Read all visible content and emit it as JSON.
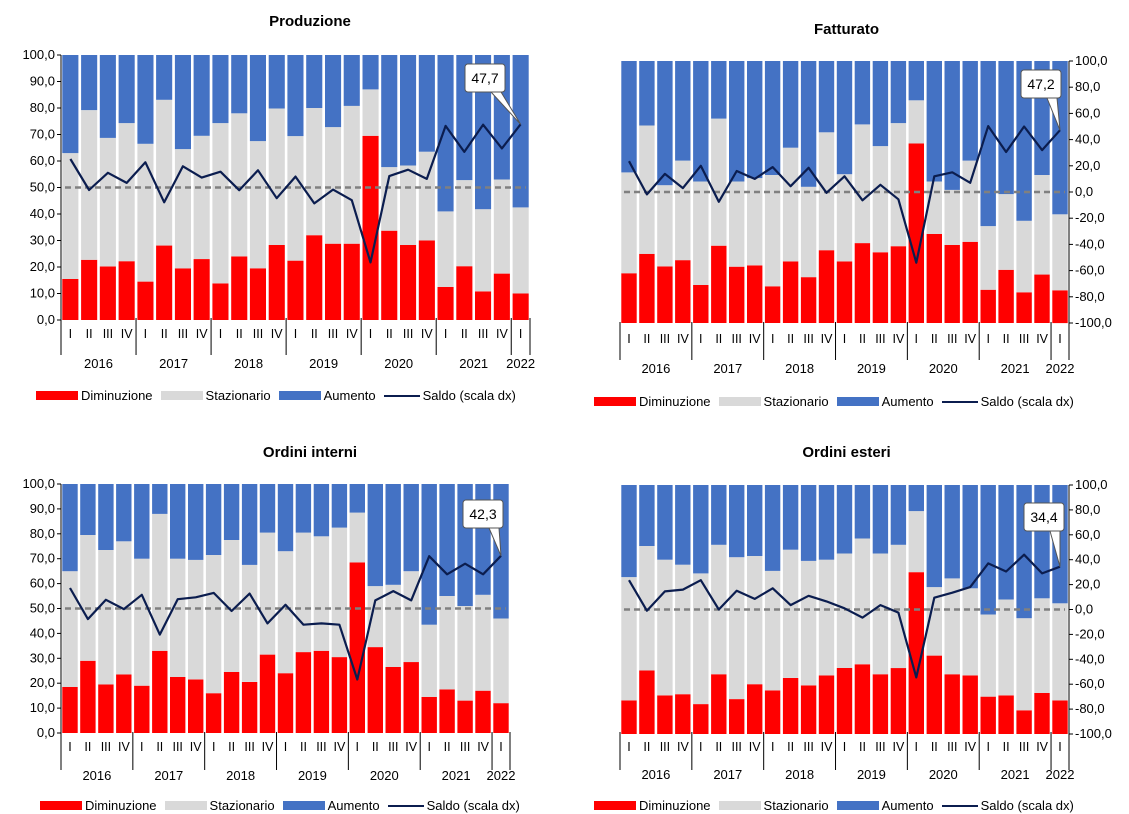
{
  "legend": {
    "decrease": "Diminuzione",
    "steady": "Stazionario",
    "increase": "Aumento",
    "balance": "Saldo (scala dx)"
  },
  "colors": {
    "decrease": "#ff0000",
    "steady": "#d9d9d9",
    "increase": "#4472c4",
    "balance": "#0b1d4f",
    "zero_line": "#808080"
  },
  "chart_data": [
    {
      "type": "bar",
      "stacked": true,
      "title": "Produzione",
      "categories": [
        "I",
        "II",
        "III",
        "IV",
        "I",
        "II",
        "III",
        "IV",
        "I",
        "II",
        "III",
        "IV",
        "I",
        "II",
        "III",
        "IV",
        "I",
        "II",
        "III",
        "IV",
        "I",
        "II",
        "III",
        "IV",
        "I"
      ],
      "year_labels": [
        "2016",
        "2017",
        "2018",
        "2019",
        "2020",
        "2021",
        "2022"
      ],
      "y_left_ticks": [
        "100,0",
        "90,0",
        "80,0",
        "70,0",
        "60,0",
        "50,0",
        "40,0",
        "30,0",
        "20,0",
        "10,0",
        "0,0"
      ],
      "ylim_left": [
        0,
        100
      ],
      "series": [
        {
          "name": "Diminuzione",
          "values": [
            15.5,
            22.7,
            20.2,
            22.2,
            14.5,
            28.1,
            19.5,
            23.0,
            13.8,
            24.0,
            19.5,
            28.3,
            22.4,
            32.0,
            28.8,
            28.8,
            69.5,
            33.7,
            28.3,
            30.0,
            12.5,
            20.3,
            10.8,
            17.5,
            10.0
          ]
        },
        {
          "name": "Stazionario",
          "values": [
            47.5,
            56.5,
            48.5,
            52.1,
            52.0,
            55.0,
            45.0,
            46.5,
            60.5,
            54.0,
            48.0,
            51.5,
            47.0,
            48.0,
            44.0,
            52.0,
            17.5,
            24.0,
            30.0,
            33.5,
            28.5,
            32.5,
            31.0,
            35.5,
            32.5
          ]
        },
        {
          "name": "Aumento",
          "values": [
            37.0,
            20.8,
            31.3,
            25.7,
            33.5,
            16.9,
            35.5,
            30.5,
            25.7,
            22.0,
            32.5,
            20.2,
            30.6,
            20.0,
            27.2,
            19.2,
            13.0,
            42.3,
            41.7,
            36.5,
            59.0,
            47.2,
            58.2,
            47.0,
            57.5
          ]
        },
        {
          "name": "Saldo (scala dx)",
          "axis": "right",
          "values": [
            21.5,
            -1.9,
            11.1,
            3.5,
            19.0,
            -11.2,
            16.0,
            7.5,
            11.9,
            -2.0,
            13.0,
            -8.1,
            8.2,
            -12.0,
            -1.6,
            -9.6,
            -56.5,
            8.6,
            13.4,
            6.5,
            46.5,
            26.9,
            47.4,
            29.5,
            47.7
          ]
        }
      ],
      "callout": "47,7"
    },
    {
      "type": "bar",
      "stacked": true,
      "title": "Fatturato",
      "categories": [
        "I",
        "II",
        "III",
        "IV",
        "I",
        "II",
        "III",
        "IV",
        "I",
        "II",
        "III",
        "IV",
        "I",
        "II",
        "III",
        "IV",
        "I",
        "II",
        "III",
        "IV",
        "I",
        "II",
        "III",
        "IV",
        "I"
      ],
      "year_labels": [
        "2016",
        "2017",
        "2018",
        "2019",
        "2020",
        "2021",
        "2022"
      ],
      "y_right_ticks": [
        "100,0",
        "80,0",
        "60,0",
        "40,0",
        "20,0",
        "0,0",
        "-20,0",
        "-40,0",
        "-60,0",
        "-80,0",
        "-100,0"
      ],
      "ylim_right": [
        -100,
        100
      ],
      "series": [
        {
          "name": "Diminuzione",
          "values": [
            19.0,
            26.4,
            21.6,
            24.0,
            14.5,
            29.5,
            21.5,
            22.0,
            14.0,
            23.5,
            17.5,
            27.8,
            23.5,
            30.5,
            27.0,
            29.3,
            68.5,
            34.0,
            29.8,
            31.0,
            12.7,
            20.3,
            11.7,
            18.5,
            12.5
          ]
        },
        {
          "name": "Stazionario",
          "values": [
            38.5,
            49.0,
            31.0,
            38.0,
            39.5,
            48.5,
            32.5,
            33.3,
            42.5,
            43.4,
            34.5,
            45.0,
            33.3,
            45.3,
            40.5,
            47.0,
            16.5,
            20.0,
            21.0,
            31.0,
            24.3,
            28.9,
            27.3,
            38.0,
            29.0
          ]
        },
        {
          "name": "Aumento",
          "values": [
            42.5,
            24.6,
            47.4,
            38.0,
            46.0,
            22.0,
            46.0,
            44.7,
            43.5,
            33.1,
            48.0,
            27.2,
            43.2,
            24.2,
            32.5,
            23.7,
            15.0,
            46.0,
            49.2,
            38.0,
            63.0,
            50.8,
            61.0,
            43.5,
            58.5
          ]
        },
        {
          "name": "Saldo (scala dx)",
          "axis": "right",
          "values": [
            23.5,
            -1.8,
            13.8,
            3.0,
            20.0,
            -7.5,
            16.0,
            10.0,
            19.0,
            4.4,
            18.5,
            -0.6,
            12.0,
            -6.3,
            5.5,
            -5.6,
            -54.0,
            12.0,
            15.0,
            7.0,
            50.3,
            30.5,
            50.0,
            32.0,
            47.2
          ]
        }
      ],
      "callout": "47,2"
    },
    {
      "type": "bar",
      "stacked": true,
      "title": "Ordini interni",
      "categories": [
        "I",
        "II",
        "III",
        "IV",
        "I",
        "II",
        "III",
        "IV",
        "I",
        "II",
        "III",
        "IV",
        "I",
        "II",
        "III",
        "IV",
        "I",
        "II",
        "III",
        "IV",
        "I",
        "II",
        "III",
        "IV",
        "I"
      ],
      "year_labels": [
        "2016",
        "2017",
        "2018",
        "2019",
        "2020",
        "2021",
        "2022"
      ],
      "y_left_ticks": [
        "100,0",
        "90,0",
        "80,0",
        "70,0",
        "60,0",
        "50,0",
        "40,0",
        "30,0",
        "20,0",
        "10,0",
        "0,0"
      ],
      "ylim_left": [
        0,
        100
      ],
      "series": [
        {
          "name": "Diminuzione",
          "values": [
            18.5,
            29.0,
            19.5,
            23.5,
            19.0,
            33.0,
            22.5,
            21.5,
            16.0,
            24.5,
            20.5,
            31.5,
            24.0,
            32.5,
            33.0,
            30.5,
            68.5,
            34.5,
            26.5,
            28.5,
            14.5,
            17.5,
            13.0,
            17.0,
            12.0
          ]
        },
        {
          "name": "Stazionario",
          "values": [
            46.5,
            50.5,
            54.0,
            53.5,
            51.0,
            55.0,
            47.5,
            48.0,
            55.5,
            53.0,
            47.0,
            49.0,
            49.0,
            48.0,
            46.0,
            52.0,
            20.0,
            24.5,
            33.0,
            36.5,
            29.0,
            37.5,
            38.0,
            38.5,
            34.0
          ]
        },
        {
          "name": "Aumento",
          "values": [
            35.0,
            20.5,
            26.5,
            23.0,
            30.0,
            12.0,
            30.0,
            30.5,
            28.5,
            22.5,
            32.5,
            19.5,
            27.0,
            19.5,
            21.0,
            17.5,
            11.5,
            41.0,
            40.5,
            35.0,
            56.5,
            45.0,
            49.0,
            44.5,
            54.0
          ]
        },
        {
          "name": "Saldo (scala dx)",
          "axis": "right",
          "values": [
            16.5,
            -8.5,
            7.0,
            -0.5,
            11.0,
            -21.0,
            7.5,
            9.0,
            12.5,
            -2.0,
            12.0,
            -12.0,
            3.0,
            -13.0,
            -12.0,
            -13.0,
            -57.0,
            6.5,
            14.0,
            6.5,
            42.0,
            27.5,
            36.0,
            27.5,
            42.3
          ]
        }
      ],
      "callout": "42,3"
    },
    {
      "type": "bar",
      "stacked": true,
      "title": "Ordini esteri",
      "categories": [
        "I",
        "II",
        "III",
        "IV",
        "I",
        "II",
        "III",
        "IV",
        "I",
        "II",
        "III",
        "IV",
        "I",
        "II",
        "III",
        "IV",
        "I",
        "II",
        "III",
        "IV",
        "I",
        "II",
        "III",
        "IV",
        "I"
      ],
      "year_labels": [
        "2016",
        "2017",
        "2018",
        "2019",
        "2020",
        "2021",
        "2022"
      ],
      "y_right_ticks": [
        "100,0",
        "80,0",
        "60,0",
        "40,0",
        "20,0",
        "0,0",
        "-20,0",
        "-40,0",
        "-60,0",
        "-80,0",
        "-100,0"
      ],
      "ylim_right": [
        -100,
        100
      ],
      "series": [
        {
          "name": "Diminuzione",
          "values": [
            13.5,
            25.5,
            15.5,
            16.0,
            12.0,
            24.0,
            14.0,
            20.0,
            17.5,
            22.5,
            19.5,
            23.5,
            26.5,
            28.0,
            24.0,
            26.5,
            65.0,
            31.5,
            24.0,
            23.5,
            15.0,
            15.5,
            9.5,
            16.5,
            13.5
          ]
        },
        {
          "name": "Stazionario",
          "values": [
            49.5,
            50.0,
            54.5,
            52.0,
            52.5,
            52.0,
            57.0,
            51.5,
            48.0,
            51.5,
            50.0,
            46.5,
            46.0,
            50.5,
            48.5,
            49.5,
            24.5,
            27.5,
            38.5,
            35.0,
            33.0,
            38.5,
            37.0,
            38.0,
            39.0
          ]
        },
        {
          "name": "Aumento",
          "values": [
            37.0,
            24.5,
            30.0,
            32.0,
            35.5,
            24.0,
            29.0,
            28.5,
            34.5,
            26.0,
            30.5,
            30.0,
            27.5,
            21.5,
            27.5,
            24.0,
            10.5,
            41.0,
            37.5,
            41.5,
            52.0,
            46.0,
            53.5,
            45.5,
            47.5
          ]
        },
        {
          "name": "Saldo (scala dx)",
          "axis": "right",
          "values": [
            23.5,
            -1.0,
            14.5,
            16.0,
            23.5,
            0.0,
            15.0,
            8.5,
            17.0,
            3.5,
            11.0,
            6.5,
            1.0,
            -6.5,
            3.5,
            -2.5,
            -54.5,
            9.5,
            13.5,
            18.0,
            37.0,
            30.5,
            44.0,
            29.0,
            34.4
          ]
        }
      ],
      "callout": "34,4"
    }
  ]
}
